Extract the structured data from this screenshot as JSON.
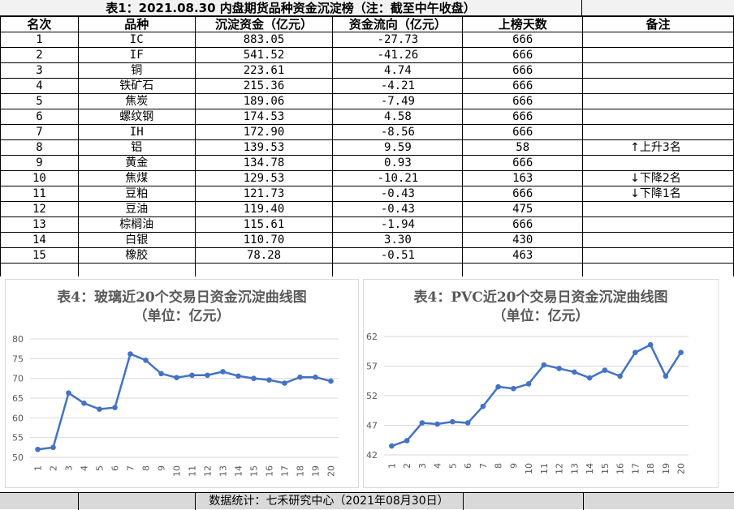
{
  "table_title": "表1：2021.08.30 内盘期货品种资金沉淀榜（注：截至中午收盘）",
  "headers": [
    "名次",
    "品种",
    "沉淀资金（亿元）",
    "资金流向（亿元）",
    "上榜天数",
    "备注"
  ],
  "rows": [
    {
      "rank": "1",
      "name": "IC",
      "capital": "883.05",
      "flow": "-27.73",
      "days": "666",
      "note": ""
    },
    {
      "rank": "2",
      "name": "IF",
      "capital": "541.52",
      "flow": "-41.26",
      "days": "666",
      "note": ""
    },
    {
      "rank": "3",
      "name": "铜",
      "capital": "223.61",
      "flow": "4.74",
      "days": "666",
      "note": ""
    },
    {
      "rank": "4",
      "name": "铁矿石",
      "capital": "215.36",
      "flow": "-4.21",
      "days": "666",
      "note": ""
    },
    {
      "rank": "5",
      "name": "焦炭",
      "capital": "189.06",
      "flow": "-7.49",
      "days": "666",
      "note": ""
    },
    {
      "rank": "6",
      "name": "螺纹钢",
      "capital": "174.53",
      "flow": "4.58",
      "days": "666",
      "note": ""
    },
    {
      "rank": "7",
      "name": "IH",
      "capital": "172.90",
      "flow": "-8.56",
      "days": "666",
      "note": ""
    },
    {
      "rank": "8",
      "name": "铝",
      "capital": "139.53",
      "flow": "9.59",
      "days": "58",
      "note": "↑上升3名"
    },
    {
      "rank": "9",
      "name": "黄金",
      "capital": "134.78",
      "flow": "0.93",
      "days": "666",
      "note": ""
    },
    {
      "rank": "10",
      "name": "焦煤",
      "capital": "129.53",
      "flow": "-10.21",
      "days": "163",
      "note": "↓下降2名"
    },
    {
      "rank": "11",
      "name": "豆粕",
      "capital": "121.73",
      "flow": "-0.43",
      "days": "666",
      "note": "↓下降1名"
    },
    {
      "rank": "12",
      "name": "豆油",
      "capital": "119.40",
      "flow": "-0.43",
      "days": "475",
      "note": ""
    },
    {
      "rank": "13",
      "name": "棕榈油",
      "capital": "115.61",
      "flow": "-1.94",
      "days": "666",
      "note": ""
    },
    {
      "rank": "14",
      "name": "白银",
      "capital": "110.70",
      "flow": "3.30",
      "days": "430",
      "note": ""
    },
    {
      "rank": "15",
      "name": "橡胶",
      "capital": "78.28",
      "flow": "-0.51",
      "days": "463",
      "note": ""
    }
  ],
  "footer": "数据统计：七禾研究中心（2021年08月30日）",
  "colors": {
    "line": "#4472c4",
    "grid": "#d9d9d9",
    "axis_text": "#595959",
    "title_text": "#595959"
  },
  "chart_data": [
    {
      "type": "line",
      "title": "表4：玻璃近20个交易日资金沉淀曲线图",
      "subtitle": "（单位：亿元）",
      "x": [
        "1",
        "2",
        "3",
        "4",
        "5",
        "6",
        "7",
        "8",
        "9",
        "10",
        "11",
        "12",
        "13",
        "14",
        "15",
        "16",
        "17",
        "18",
        "19",
        "20"
      ],
      "series": [
        {
          "values": [
            52.0,
            52.5,
            66.3,
            63.7,
            62.2,
            62.6,
            76.2,
            74.6,
            71.2,
            70.2,
            70.8,
            70.8,
            71.7,
            70.6,
            70.0,
            69.6,
            68.8,
            70.3,
            70.3,
            69.3
          ]
        }
      ],
      "ylim": [
        50,
        80
      ],
      "yticks": [
        50,
        55,
        60,
        65,
        70,
        75,
        80
      ],
      "grid": true
    },
    {
      "type": "line",
      "title": "表4：PVC近20个交易日资金沉淀曲线图",
      "subtitle": "（单位：亿元）",
      "x": [
        "1",
        "2",
        "3",
        "4",
        "5",
        "6",
        "7",
        "8",
        "9",
        "10",
        "11",
        "12",
        "13",
        "14",
        "15",
        "16",
        "17",
        "18",
        "19",
        "20"
      ],
      "series": [
        {
          "values": [
            43.5,
            44.4,
            47.4,
            47.2,
            47.6,
            47.4,
            50.2,
            53.5,
            53.2,
            54.0,
            57.2,
            56.6,
            56.0,
            55.0,
            56.3,
            55.3,
            59.3,
            60.6,
            55.3,
            59.3
          ]
        }
      ],
      "ylim": [
        42,
        62
      ],
      "yticks": [
        42,
        47,
        52,
        57,
        62
      ],
      "grid": true
    }
  ]
}
